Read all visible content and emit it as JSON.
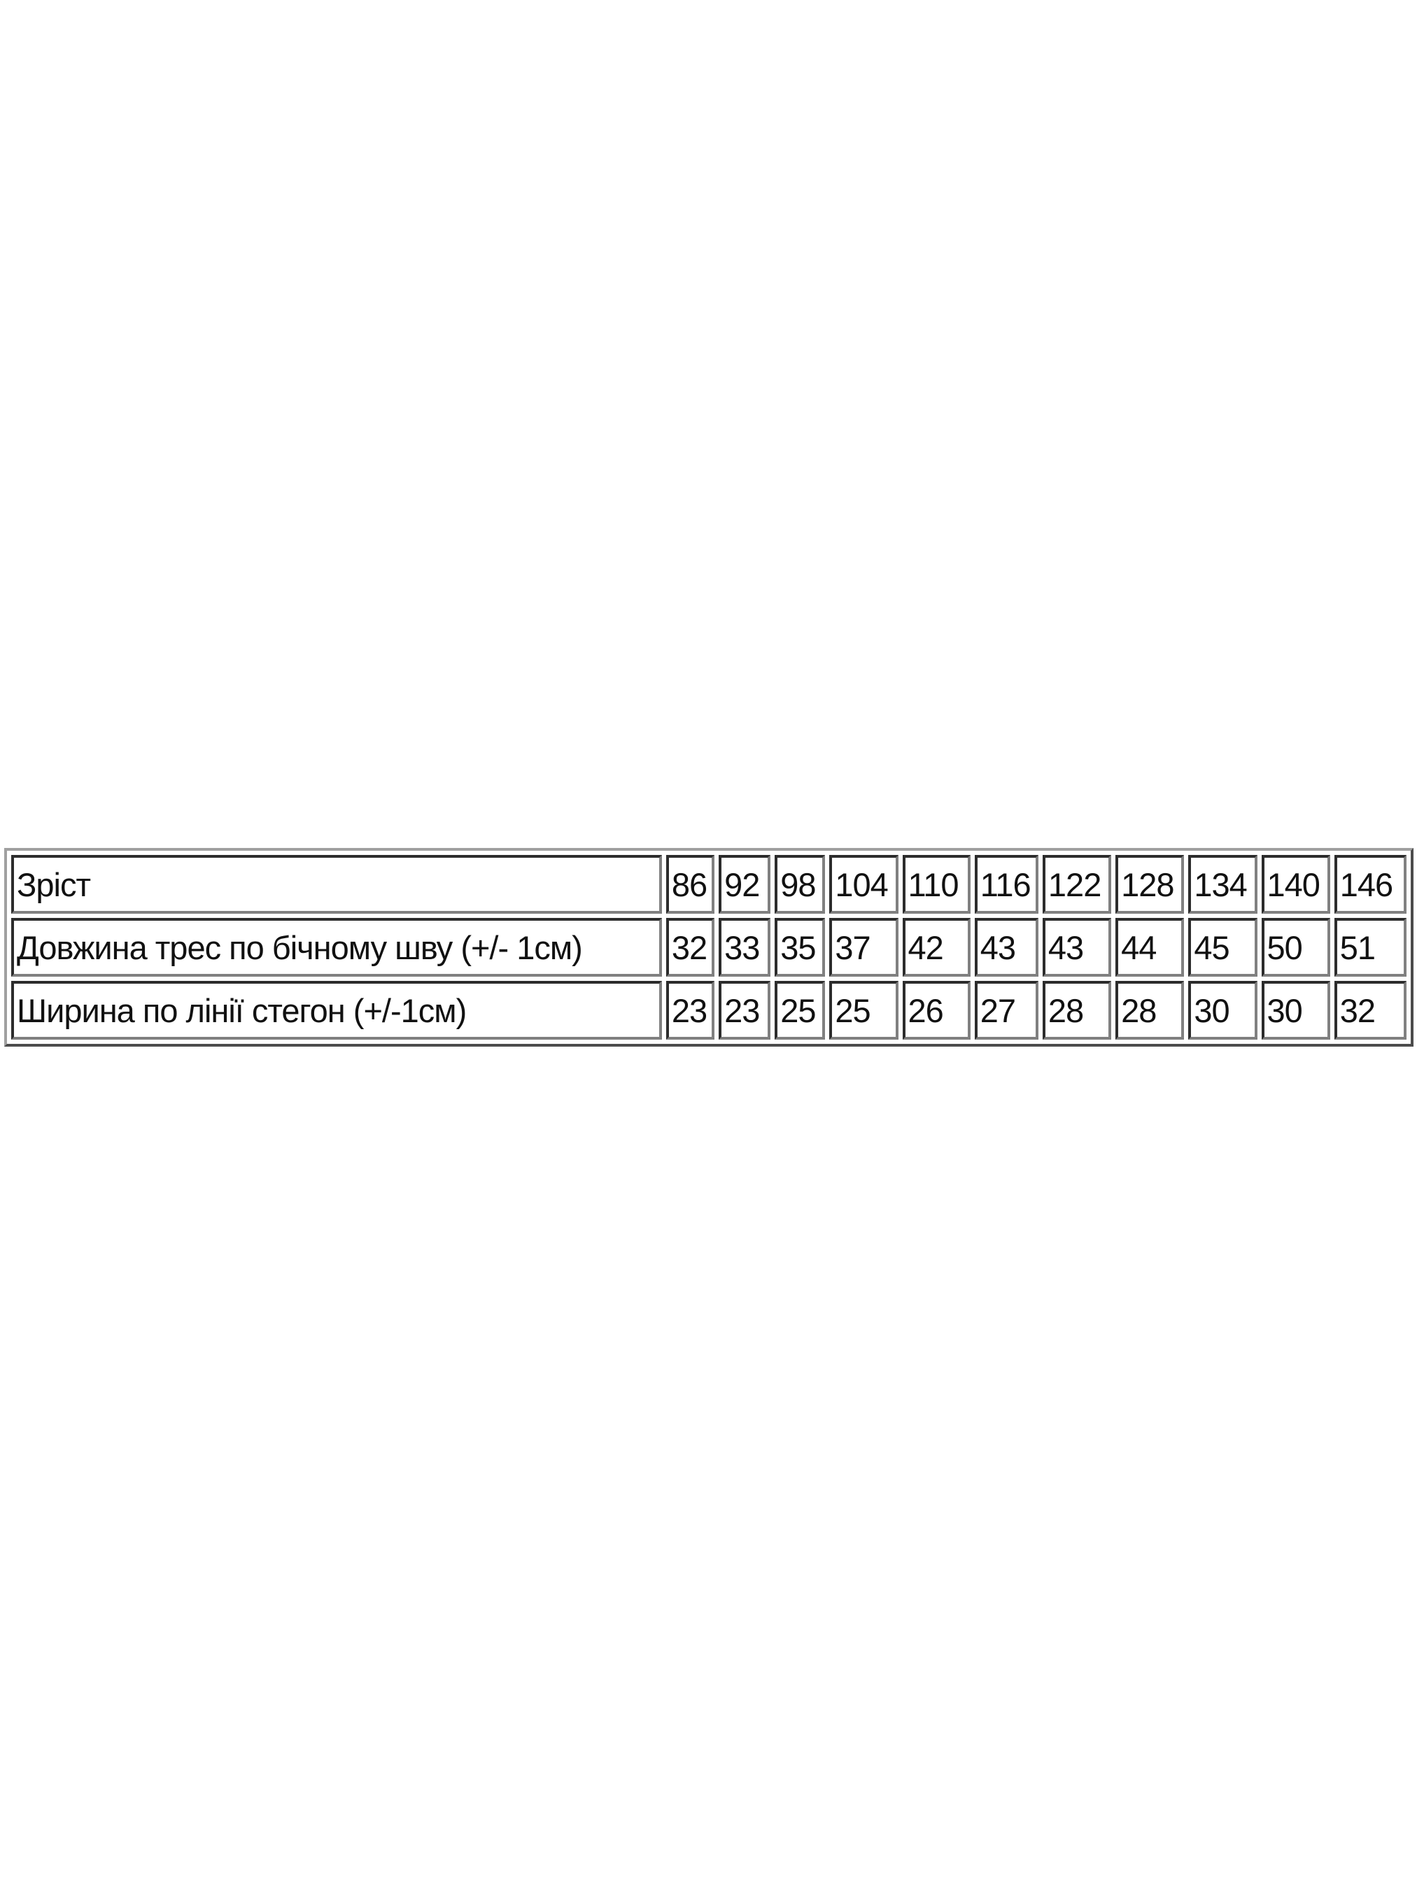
{
  "table": {
    "rows": [
      {
        "label": "Зріст",
        "values": [
          "86",
          "92",
          "98",
          "104",
          "110",
          "116",
          "122",
          "128",
          "134",
          "140",
          "146"
        ]
      },
      {
        "label": "Довжина трес по бічному шву (+/- 1см)",
        "values": [
          "32",
          "33",
          "35",
          "37",
          "42",
          "43",
          "43",
          "44",
          "45",
          "50",
          "51"
        ]
      },
      {
        "label": "Ширина по лінії стегон (+/-1см)",
        "values": [
          "23",
          "23",
          "25",
          "25",
          "26",
          "27",
          "28",
          "28",
          "30",
          "30",
          "32"
        ]
      }
    ]
  }
}
